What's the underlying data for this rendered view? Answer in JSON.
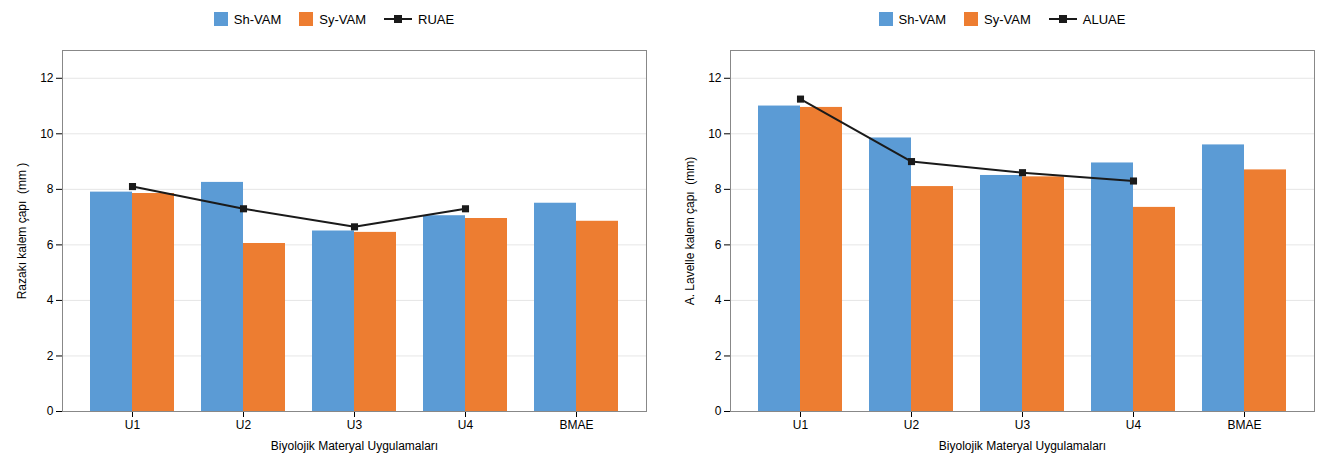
{
  "chart_data": [
    {
      "type": "bar",
      "categories": [
        "U1",
        "U2",
        "U3",
        "U4",
        "BMAE"
      ],
      "series": [
        {
          "name": "Sh-VAM",
          "color": "#5B9BD5",
          "values": [
            7.9,
            8.25,
            6.5,
            7.05,
            7.5
          ]
        },
        {
          "name": "Sy-VAM",
          "color": "#ED7D31",
          "values": [
            7.85,
            6.05,
            6.45,
            6.95,
            6.85
          ]
        },
        {
          "name": "RUAE",
          "type": "line",
          "color": "#1a1a1a",
          "marker": "square",
          "values": [
            8.1,
            7.3,
            6.65,
            7.3,
            null
          ]
        }
      ],
      "xlabel": "Biyolojik Materyal Uygulamaları",
      "ylabel": "Razakı kalem çapı  (mm )",
      "ylim": [
        0,
        13
      ],
      "yticks": [
        0,
        2,
        4,
        6,
        8,
        10,
        12
      ],
      "grid": true,
      "legend": "top"
    },
    {
      "type": "bar",
      "categories": [
        "U1",
        "U2",
        "U3",
        "U4",
        "BMAE"
      ],
      "series": [
        {
          "name": "Sh-VAM",
          "color": "#5B9BD5",
          "values": [
            11.0,
            9.85,
            8.5,
            8.95,
            9.6
          ]
        },
        {
          "name": "Sy-VAM",
          "color": "#ED7D31",
          "values": [
            10.95,
            8.1,
            8.45,
            7.35,
            8.7
          ]
        },
        {
          "name": "ALUAE",
          "type": "line",
          "color": "#1a1a1a",
          "marker": "square",
          "values": [
            11.25,
            9.0,
            8.6,
            8.3,
            null
          ]
        }
      ],
      "xlabel": "Biyolojik Materyal Uygulamaları",
      "ylabel": "A. Lavelle kalem çapı  (mm)",
      "ylim": [
        0,
        13
      ],
      "yticks": [
        0,
        2,
        4,
        6,
        8,
        10,
        12
      ],
      "grid": true,
      "legend": "top"
    }
  ]
}
